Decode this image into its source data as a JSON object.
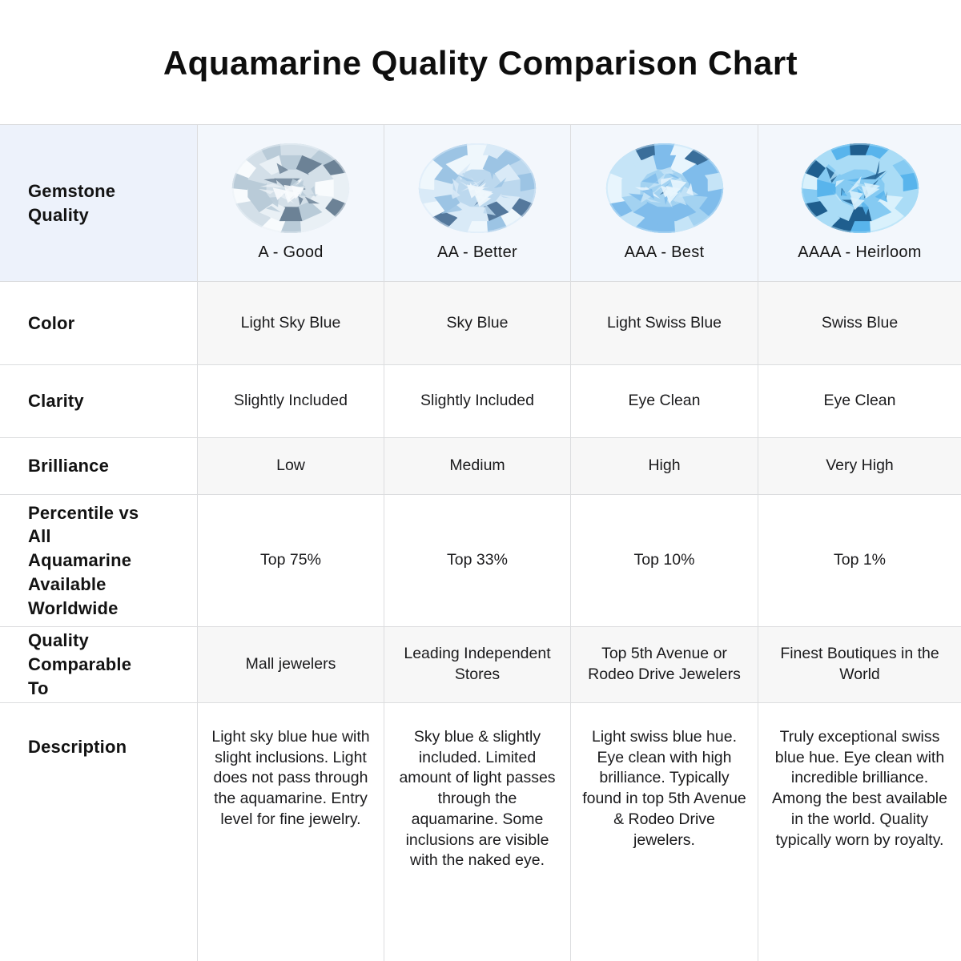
{
  "title": "Aquamarine Quality Comparison Chart",
  "colors": {
    "border": "#dcdddf",
    "header_row_bg": "#f3f7fc",
    "header_label_bg": "#edf2fb",
    "gray_row_bg": "#f7f7f7",
    "text": "#161616"
  },
  "table": {
    "header": {
      "label": "Gemstone Quality",
      "grades": [
        {
          "label": "A - Good",
          "icon": "aquamarine-gem-light",
          "palette": {
            "light": "#e9f0f5",
            "mid": "#d3dfe8",
            "deep": "#b9cbd8",
            "dark": "#6c8296",
            "white": "#f8fbfd"
          }
        },
        {
          "label": "AA - Better",
          "icon": "aquamarine-gem-pale-blue",
          "palette": {
            "light": "#d9eaf7",
            "mid": "#bcd8ee",
            "deep": "#9cc4e4",
            "dark": "#54789c",
            "white": "#eff7fc"
          }
        },
        {
          "label": "AAA - Best",
          "icon": "aquamarine-gem-blue",
          "palette": {
            "light": "#c5e4f7",
            "mid": "#a3d2f1",
            "deep": "#7fbceb",
            "dark": "#3a6e9a",
            "white": "#e8f5fd"
          }
        },
        {
          "label": "AAAA - Heirloom",
          "icon": "aquamarine-gem-deep-blue",
          "palette": {
            "light": "#aadcf6",
            "mid": "#85caf2",
            "deep": "#58b4ec",
            "dark": "#1f5e8e",
            "white": "#d9f1fc"
          }
        }
      ]
    },
    "rows": [
      {
        "label": "Color",
        "values": [
          "Light Sky Blue",
          "Sky Blue",
          "Light Swiss Blue",
          "Swiss Blue"
        ]
      },
      {
        "label": "Clarity",
        "values": [
          "Slightly Included",
          "Slightly Included",
          "Eye Clean",
          "Eye Clean"
        ]
      },
      {
        "label": "Brilliance",
        "values": [
          "Low",
          "Medium",
          "High",
          "Very High"
        ]
      },
      {
        "label": "Percentile vs All Aquamarine Available Worldwide",
        "values": [
          "Top 75%",
          "Top 33%",
          "Top 10%",
          "Top 1%"
        ]
      },
      {
        "label": "Quality Comparable To",
        "values": [
          "Mall jewelers",
          "Leading Independent Stores",
          "Top 5th Avenue or Rodeo Drive Jewelers",
          "Finest Boutiques in the World"
        ]
      },
      {
        "label": "Description",
        "values": [
          "Light sky blue hue with slight inclusions. Light does not pass through the aquamarine. Entry level for fine jewelry.",
          "Sky blue & slightly included. Limited amount of light passes through the aquamarine. Some inclusions are visible with the naked eye.",
          "Light swiss blue hue. Eye clean with high brilliance. Typically found in top 5th Avenue & Rodeo Drive jewelers.",
          "Truly exceptional swiss blue hue. Eye clean with incredible brilliance. Among the best available in the world. Quality typically worn by royalty."
        ]
      }
    ]
  },
  "chart_data": {
    "type": "table",
    "title": "Aquamarine Quality Comparison Chart",
    "columns": [
      "A - Good",
      "AA - Better",
      "AAA - Best",
      "AAAA - Heirloom"
    ],
    "rows": [
      {
        "label": "Color",
        "values": [
          "Light Sky Blue",
          "Sky Blue",
          "Light Swiss Blue",
          "Swiss Blue"
        ]
      },
      {
        "label": "Clarity",
        "values": [
          "Slightly Included",
          "Slightly Included",
          "Eye Clean",
          "Eye Clean"
        ]
      },
      {
        "label": "Brilliance",
        "values": [
          "Low",
          "Medium",
          "High",
          "Very High"
        ]
      },
      {
        "label": "Percentile vs All Aquamarine Available Worldwide",
        "values": [
          "Top 75%",
          "Top 33%",
          "Top 10%",
          "Top 1%"
        ]
      },
      {
        "label": "Quality Comparable To",
        "values": [
          "Mall jewelers",
          "Leading Independent Stores",
          "Top 5th Avenue or Rodeo Drive Jewelers",
          "Finest Boutiques in the World"
        ]
      },
      {
        "label": "Description",
        "values": [
          "Light sky blue hue with slight inclusions. Light does not pass through the aquamarine. Entry level for fine jewelry.",
          "Sky blue & slightly included. Limited amount of light passes through the aquamarine. Some inclusions are visible with the naked eye.",
          "Light swiss blue hue. Eye clean with high brilliance. Typically found in top 5th Avenue & Rodeo Drive jewelers.",
          "Truly exceptional swiss blue hue. Eye clean with incredible brilliance. Among the best available in the world. Quality typically worn by royalty."
        ]
      }
    ]
  }
}
